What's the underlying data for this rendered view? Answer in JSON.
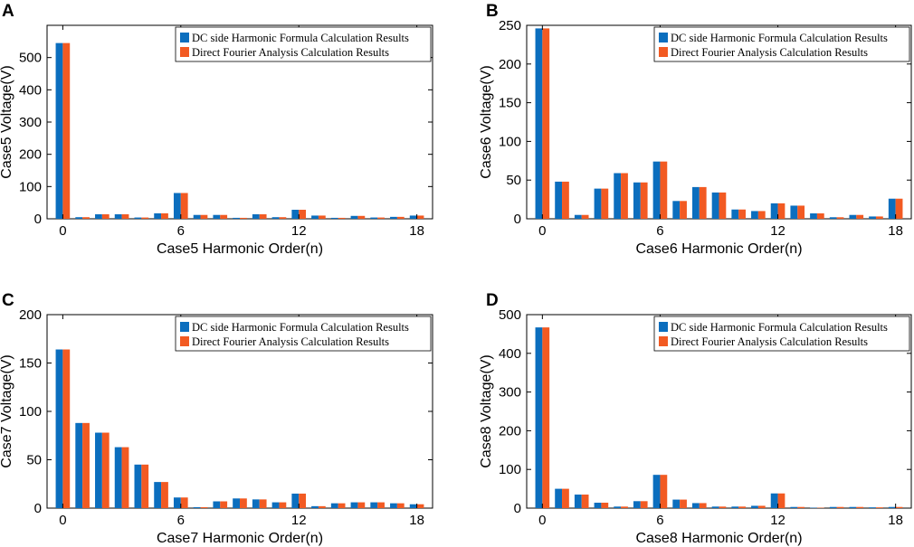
{
  "figure": {
    "legend_entries": [
      "DC side Harmonic Formula Calculation Results",
      "Direct Fourier Analysis Calculation Results"
    ]
  },
  "colors": {
    "series1": "#0b6ebe",
    "series2": "#f25a22"
  },
  "chart_data": [
    {
      "panel": "A",
      "type": "bar",
      "xlabel": "Case5 Harmonic Order(n)",
      "ylabel": "Case5 Voltage(V)",
      "categories": [
        0,
        1,
        2,
        3,
        4,
        5,
        6,
        7,
        8,
        9,
        10,
        11,
        12,
        13,
        14,
        15,
        16,
        17,
        18
      ],
      "x_ticks": [
        0,
        6,
        12,
        18
      ],
      "y_ticks": [
        0,
        100,
        200,
        300,
        400,
        500
      ],
      "ylim": [
        0,
        600
      ],
      "legend": "top-right",
      "series": [
        {
          "name": "DC side Harmonic Formula Calculation Results",
          "values": [
            545,
            5,
            14,
            14,
            4,
            17,
            80,
            12,
            12,
            3,
            14,
            5,
            28,
            10,
            3,
            9,
            4,
            6,
            10
          ]
        },
        {
          "name": "Direct Fourier Analysis Calculation Results",
          "values": [
            545,
            5,
            14,
            14,
            4,
            17,
            80,
            12,
            12,
            3,
            14,
            5,
            28,
            10,
            3,
            9,
            4,
            6,
            10
          ]
        }
      ]
    },
    {
      "panel": "B",
      "type": "bar",
      "xlabel": "Case6 Harmonic Order(n)",
      "ylabel": "Case6 Voltage(V)",
      "categories": [
        0,
        1,
        2,
        3,
        4,
        5,
        6,
        7,
        8,
        9,
        10,
        11,
        12,
        13,
        14,
        15,
        16,
        17,
        18
      ],
      "x_ticks": [
        0,
        6,
        12,
        18
      ],
      "y_ticks": [
        0,
        50,
        100,
        150,
        200,
        250
      ],
      "ylim": [
        0,
        250
      ],
      "legend": "top-right",
      "series": [
        {
          "name": "DC side Harmonic Formula Calculation Results",
          "values": [
            246,
            48,
            5,
            39,
            59,
            47,
            74,
            23,
            41,
            34,
            12,
            10,
            20,
            17,
            7,
            2,
            5,
            3,
            26
          ]
        },
        {
          "name": "Direct Fourier Analysis Calculation Results",
          "values": [
            246,
            48,
            5,
            39,
            59,
            47,
            74,
            23,
            41,
            34,
            12,
            10,
            20,
            17,
            7,
            2,
            5,
            3,
            26
          ]
        }
      ]
    },
    {
      "panel": "C",
      "type": "bar",
      "xlabel": "Case7 Harmonic Order(n)",
      "ylabel": "Case7 Voltage(V)",
      "categories": [
        0,
        1,
        2,
        3,
        4,
        5,
        6,
        7,
        8,
        9,
        10,
        11,
        12,
        13,
        14,
        15,
        16,
        17,
        18
      ],
      "x_ticks": [
        0,
        6,
        12,
        18
      ],
      "y_ticks": [
        0,
        50,
        100,
        150,
        200
      ],
      "ylim": [
        0,
        200
      ],
      "legend": "top-right",
      "series": [
        {
          "name": "DC side Harmonic Formula Calculation Results",
          "values": [
            164,
            88,
            78,
            63,
            45,
            27,
            11,
            1,
            7,
            10,
            9,
            6,
            15,
            2,
            5,
            6,
            6,
            5,
            4
          ]
        },
        {
          "name": "Direct Fourier Analysis Calculation Results",
          "values": [
            164,
            88,
            78,
            63,
            45,
            27,
            11,
            1,
            7,
            10,
            9,
            6,
            15,
            2,
            5,
            6,
            6,
            5,
            4
          ]
        }
      ]
    },
    {
      "panel": "D",
      "type": "bar",
      "xlabel": "Case8 Harmonic Order(n)",
      "ylabel": "Case8 Voltage(V)",
      "categories": [
        0,
        1,
        2,
        3,
        4,
        5,
        6,
        7,
        8,
        9,
        10,
        11,
        12,
        13,
        14,
        15,
        16,
        17,
        18
      ],
      "x_ticks": [
        0,
        6,
        12,
        18
      ],
      "y_ticks": [
        0,
        100,
        200,
        300,
        400,
        500
      ],
      "ylim": [
        0,
        500
      ],
      "legend": "top-right",
      "series": [
        {
          "name": "DC side Harmonic Formula Calculation Results",
          "values": [
            467,
            50,
            35,
            14,
            4,
            18,
            86,
            22,
            13,
            4,
            4,
            6,
            38,
            3,
            1,
            3,
            3,
            2,
            3
          ]
        },
        {
          "name": "Direct Fourier Analysis Calculation Results",
          "values": [
            467,
            50,
            35,
            14,
            4,
            18,
            86,
            22,
            13,
            4,
            4,
            6,
            38,
            3,
            1,
            3,
            3,
            2,
            3
          ]
        }
      ]
    }
  ]
}
